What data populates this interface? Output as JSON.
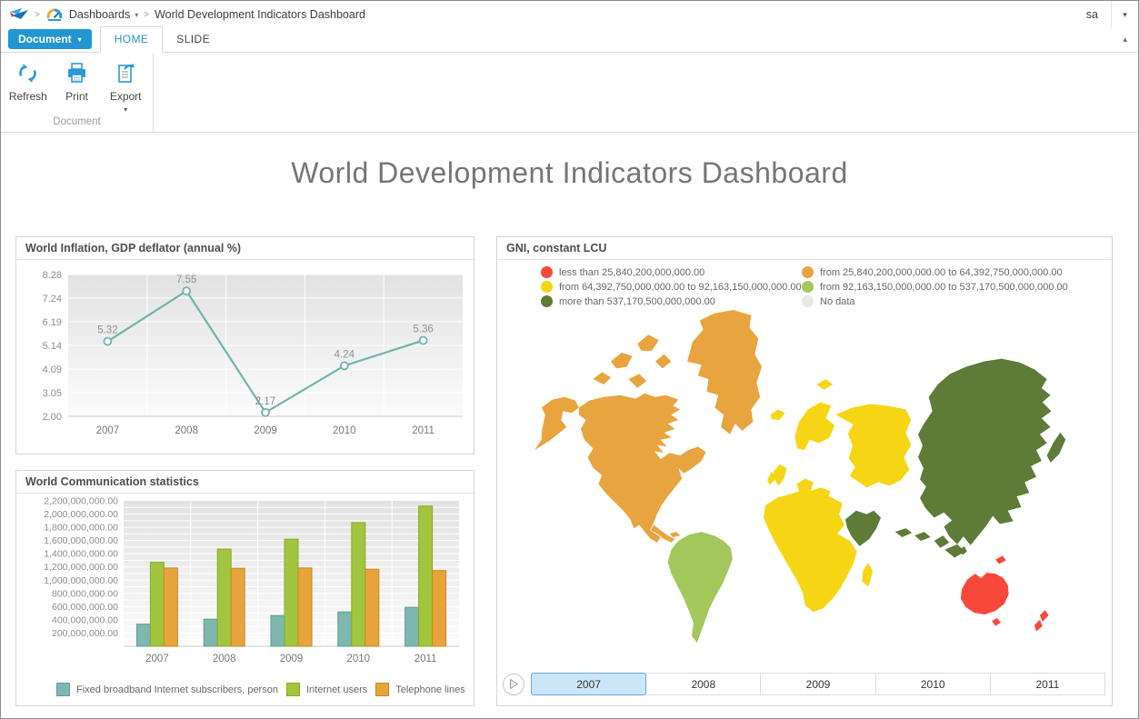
{
  "topbar": {
    "breadcrumb": {
      "root": "Dashboards",
      "current": "World Development Indicators Dashboard"
    },
    "user": "sa"
  },
  "ribbon": {
    "document_button": "Document",
    "tabs": [
      "HOME",
      "SLIDE"
    ],
    "active_tab": "HOME",
    "actions": [
      "Refresh",
      "Print",
      "Export"
    ],
    "group_label": "Document"
  },
  "page_title": "World Development Indicators Dashboard",
  "accent_color": "#2196d3",
  "chart_data": [
    {
      "type": "line",
      "title": "World Inflation, GDP deflator (annual %)",
      "categories": [
        "2007",
        "2008",
        "2009",
        "2010",
        "2011"
      ],
      "values": [
        5.32,
        7.55,
        2.17,
        4.24,
        5.36
      ],
      "yticks": [
        8.28,
        7.24,
        6.19,
        5.14,
        4.09,
        3.05,
        2.0
      ],
      "ylim": [
        2.0,
        8.28
      ],
      "line_color": "#6fb3ab",
      "grid": true,
      "data_labels": true,
      "legend_position": "none"
    },
    {
      "type": "bar",
      "title": "World Communication statistics",
      "categories": [
        "2007",
        "2008",
        "2009",
        "2010",
        "2011"
      ],
      "series": [
        {
          "name": "Fixed broadband Internet subscribers, person",
          "color": "#7db7b0",
          "edge": "#5f9d95",
          "values": [
            335000000,
            410000000,
            465000000,
            520000000,
            590000000
          ]
        },
        {
          "name": "Internet users",
          "color": "#a2c53f",
          "edge": "#86ab27",
          "values": [
            1270000000,
            1470000000,
            1620000000,
            1870000000,
            2120000000
          ]
        },
        {
          "name": "Telephone lines",
          "color": "#e8a43c",
          "edge": "#c8891f",
          "values": [
            1185000000,
            1180000000,
            1185000000,
            1165000000,
            1145000000
          ]
        }
      ],
      "ylim": [
        0,
        2200000000
      ],
      "ytick_step": 200000000,
      "grid": true,
      "legend_position": "bottom"
    },
    {
      "type": "choropleth",
      "title": "GNI, constant LCU",
      "legend": [
        {
          "label": "less than 25,840,200,000,000.00",
          "key": "red"
        },
        {
          "label": "from 25,840,200,000,000.00 to 64,392,750,000,000.00",
          "key": "orange"
        },
        {
          "label": "from 64,392,750,000,000.00 to 92,163,150,000,000.00",
          "key": "yellow"
        },
        {
          "label": "from 92,163,150,000,000.00 to 537,170,500,000,000.00",
          "key": "lightgreen"
        },
        {
          "label": "more than 537,170,500,000,000.00",
          "key": "darkgreen"
        },
        {
          "label": "No data",
          "key": "nodata"
        }
      ],
      "palette": {
        "red": "#f7493b",
        "orange": "#e8a43e",
        "yellow": "#f6d515",
        "lightgreen": "#a4c75c",
        "darkgreen": "#5e7b37",
        "nodata": "#e6e6e6"
      },
      "region_colors": {
        "alaska": "orange",
        "north-america": "orange",
        "central-america": "orange",
        "caribbean": "orange",
        "arctic-1": "orange",
        "arctic-2": "orange",
        "arctic-3": "orange",
        "arctic-4": "orange",
        "arctic-5": "orange",
        "greenland": "orange",
        "south-america": "lightgreen",
        "iceland": "yellow",
        "svalbard": "yellow",
        "scandinavia": "yellow",
        "uk": "yellow",
        "ireland": "yellow",
        "europe-west": "yellow",
        "italy": "yellow",
        "europe-east": "yellow",
        "africa": "yellow",
        "madagascar": "yellow",
        "arabia": "darkgreen",
        "asia": "darkgreen",
        "japan": "darkgreen",
        "sri-lanka": "darkgreen",
        "indonesia-1": "darkgreen",
        "indonesia-2": "darkgreen",
        "borneo": "darkgreen",
        "new-guinea": "darkgreen",
        "australia": "red",
        "tasmania": "red",
        "new-zealand-north": "red",
        "new-zealand-south": "red",
        "fiji": "red"
      },
      "years": [
        "2007",
        "2008",
        "2009",
        "2010",
        "2011"
      ],
      "selected_year": "2007"
    }
  ]
}
